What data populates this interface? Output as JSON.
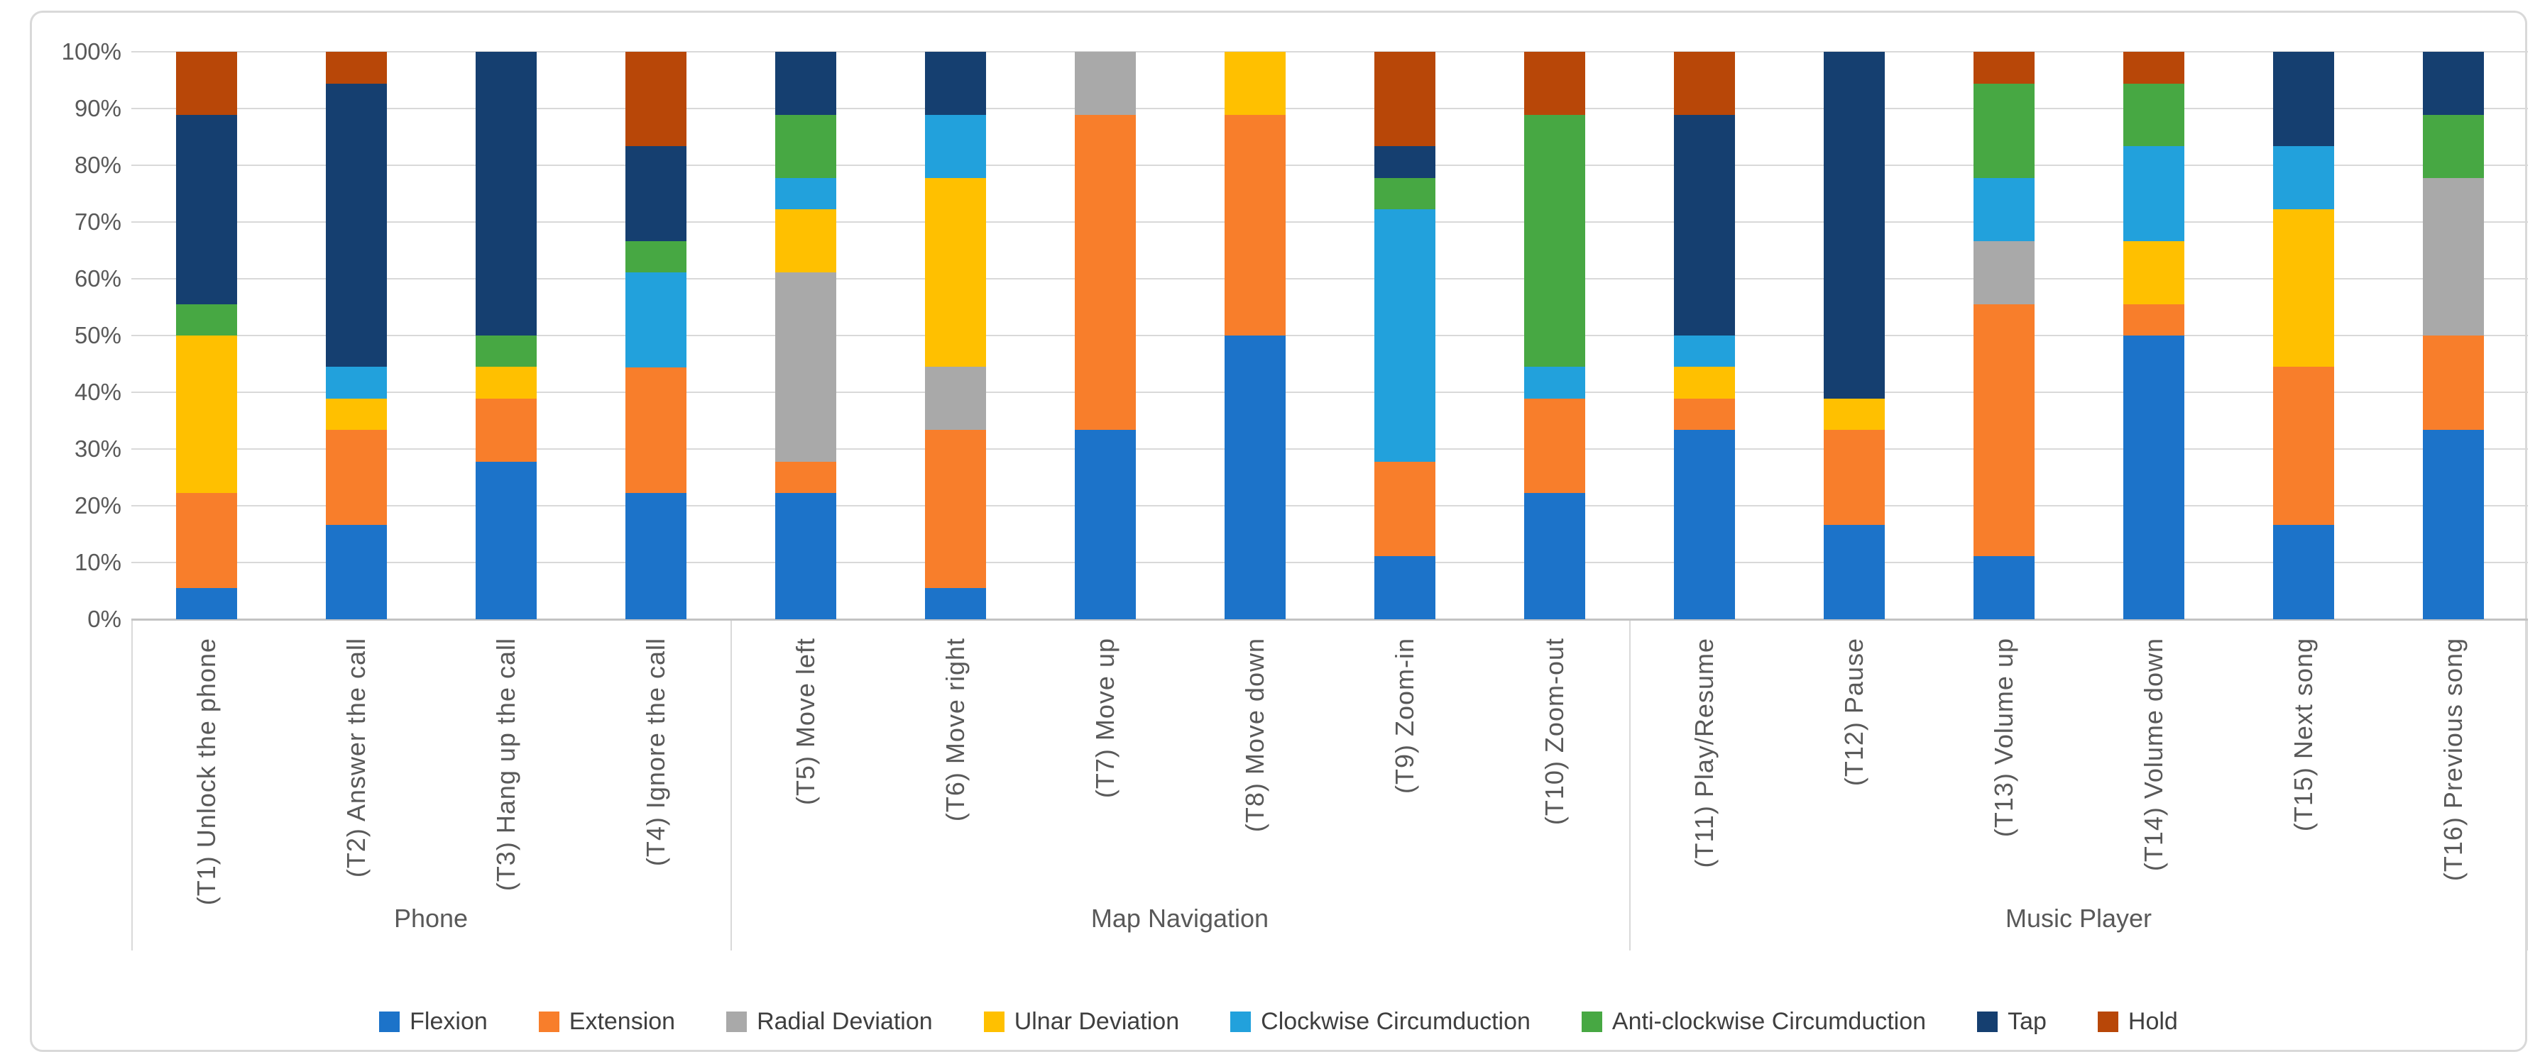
{
  "chart_data": {
    "type": "bar",
    "variant": "100%-stacked-column",
    "title": "",
    "xlabel": "",
    "ylabel": "",
    "unit": "%",
    "ylim": [
      0,
      100
    ],
    "grid": true,
    "legend_position": "bottom",
    "yticks": [
      "0%",
      "10%",
      "20%",
      "30%",
      "40%",
      "50%",
      "60%",
      "70%",
      "80%",
      "90%",
      "100%"
    ],
    "series": [
      {
        "name": "Flexion",
        "color": "#1c73c9"
      },
      {
        "name": "Extension",
        "color": "#f87e2b"
      },
      {
        "name": "Radial Deviation",
        "color": "#a9a9a9"
      },
      {
        "name": "Ulnar Deviation",
        "color": "#ffc000"
      },
      {
        "name": "Clockwise Circumduction",
        "color": "#22a1dc"
      },
      {
        "name": "Anti-clockwise Circumduction",
        "color": "#47a843"
      },
      {
        "name": "Tap",
        "color": "#153f70"
      },
      {
        "name": "Hold",
        "color": "#b84708"
      }
    ],
    "groups": [
      {
        "label": "Phone",
        "tasks": [
          {
            "label": "(T1) Unlock the phone",
            "values": [
              5.56,
              16.67,
              0,
              27.78,
              0,
              5.56,
              33.33,
              11.11
            ]
          },
          {
            "label": "(T2) Answer the call",
            "values": [
              16.67,
              16.67,
              0,
              5.56,
              5.56,
              0,
              50,
              5.56
            ]
          },
          {
            "label": "(T3) Hang up the call",
            "values": [
              27.78,
              11.11,
              0,
              5.56,
              0,
              5.56,
              50,
              0
            ]
          },
          {
            "label": "(T4) Ignore the call",
            "values": [
              22.22,
              22.22,
              0,
              0,
              16.67,
              5.56,
              16.67,
              16.67
            ]
          }
        ]
      },
      {
        "label": "Map Navigation",
        "tasks": [
          {
            "label": "(T5) Move left",
            "values": [
              22.22,
              5.56,
              33.33,
              11.11,
              5.56,
              11.11,
              11.11,
              0
            ]
          },
          {
            "label": "(T6) Move right",
            "values": [
              5.56,
              27.78,
              11.11,
              33.33,
              11.11,
              0,
              11.11,
              0
            ]
          },
          {
            "label": "(T7) Move up",
            "values": [
              33.33,
              55.56,
              11.11,
              0,
              0,
              0,
              0,
              0
            ]
          },
          {
            "label": "(T8) Move down",
            "values": [
              50,
              38.89,
              0,
              11.11,
              0,
              0,
              0,
              0
            ]
          },
          {
            "label": "(T9) Zoom-in",
            "values": [
              11.11,
              16.67,
              0,
              0,
              44.44,
              5.56,
              5.56,
              16.67
            ]
          },
          {
            "label": "(T10) Zoom-out",
            "values": [
              22.22,
              16.67,
              0,
              0,
              5.56,
              44.44,
              0,
              11.11
            ]
          }
        ]
      },
      {
        "label": "Music Player",
        "tasks": [
          {
            "label": "(T11) Play/Resume",
            "values": [
              33.33,
              5.56,
              0,
              5.56,
              5.56,
              0,
              38.89,
              11.11
            ]
          },
          {
            "label": "(T12) Pause",
            "values": [
              16.67,
              16.67,
              0,
              5.56,
              0,
              0,
              61.11,
              0
            ]
          },
          {
            "label": "(T13) Volume up",
            "values": [
              11.11,
              44.44,
              11.11,
              0,
              11.11,
              16.67,
              0,
              5.56
            ]
          },
          {
            "label": "(T14) Volume down",
            "values": [
              50,
              5.56,
              0,
              11.11,
              16.67,
              11.11,
              0,
              5.56
            ]
          },
          {
            "label": "(T15) Next song",
            "values": [
              16.67,
              27.78,
              0,
              27.78,
              11.11,
              0,
              16.67,
              0
            ]
          },
          {
            "label": "(T16) Previous song",
            "values": [
              33.33,
              16.67,
              27.78,
              0,
              0,
              11.11,
              11.11,
              0
            ]
          }
        ]
      }
    ]
  }
}
